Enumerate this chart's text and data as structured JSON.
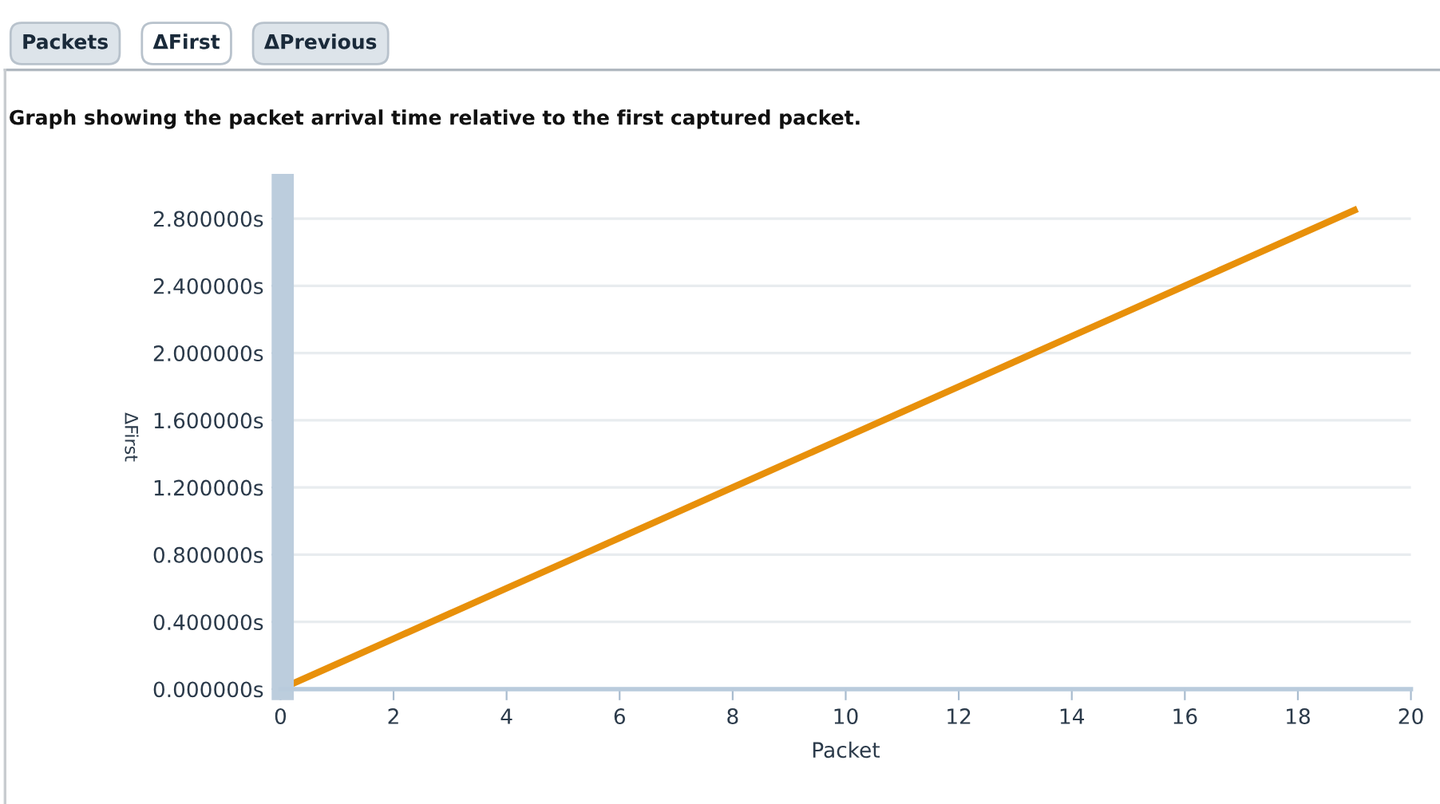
{
  "chart_data": {
    "type": "line",
    "title": "Graph showing the packet arrival time relative to the first captured packet.",
    "annotations": [
      "Packets",
      "ΔFirst",
      "ΔPrevious"
    ],
    "xlabel": "Packet",
    "ylabel": "ΔFirst",
    "x": [
      0,
      1,
      2,
      3,
      4,
      5,
      6,
      7,
      8,
      9,
      10,
      11,
      12,
      13,
      14,
      15,
      16,
      17,
      18,
      19
    ],
    "series": [
      {
        "color": "#e8900a",
        "values": [
          0,
          0.15,
          0.3,
          0.45,
          0.6,
          0.75,
          0.9,
          1.05,
          1.2,
          1.35,
          1.5,
          1.65,
          1.8,
          1.95,
          2.1,
          2.25,
          2.4,
          2.55,
          2.7,
          2.85
        ]
      }
    ],
    "xlim": [
      0,
      20
    ],
    "xticks": [
      0,
      2,
      4,
      6,
      8,
      10,
      12,
      14,
      16,
      18,
      20
    ],
    "ylim": [
      0,
      3.0
    ],
    "yticks": [
      {
        "value": 0,
        "label": "0.000000s"
      },
      {
        "value": 0.4,
        "label": "0.400000s"
      },
      {
        "value": 0.8,
        "label": "0.800000s"
      },
      {
        "value": 1.2,
        "label": "1.200000s"
      },
      {
        "value": 1.6,
        "label": "1.600000s"
      },
      {
        "value": 2.0,
        "label": "2.000000s"
      },
      {
        "value": 2.4,
        "label": "2.400000s"
      },
      {
        "value": 2.8,
        "label": "2.800000s"
      }
    ],
    "grid": "y",
    "legend": false,
    "marker": "none",
    "line_style": "solid"
  }
}
